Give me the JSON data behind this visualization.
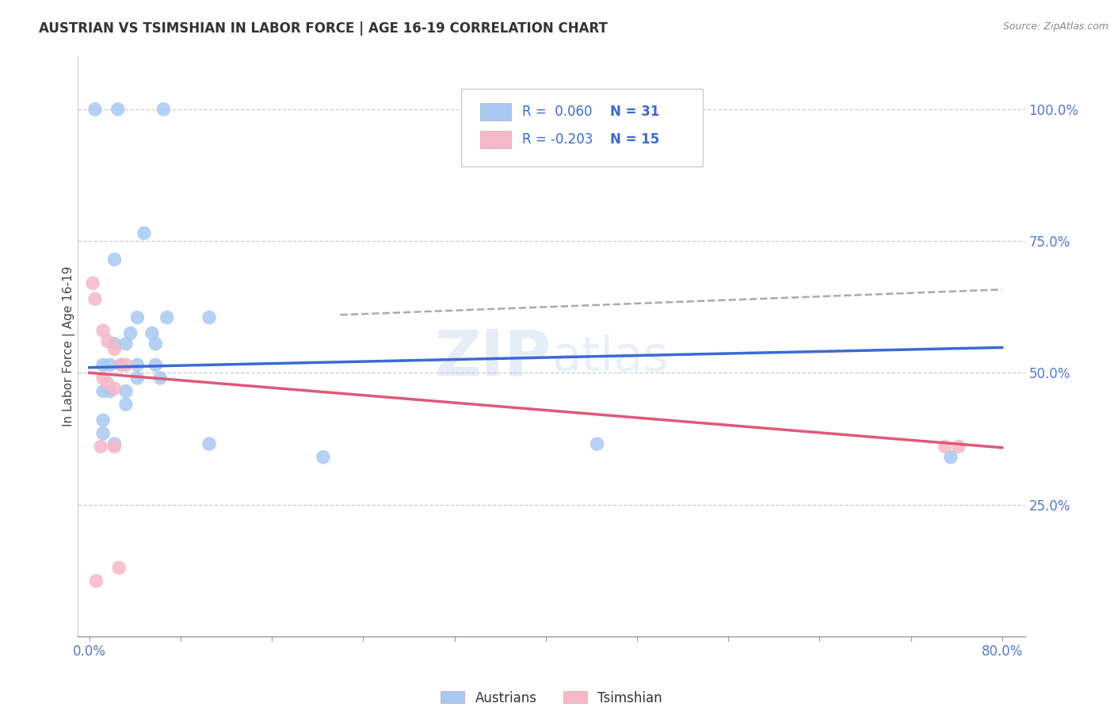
{
  "title": "AUSTRIAN VS TSIMSHIAN IN LABOR FORCE | AGE 16-19 CORRELATION CHART",
  "source": "Source: ZipAtlas.com",
  "ylabel": "In Labor Force | Age 16-19",
  "y_tick_labels": [
    "100.0%",
    "75.0%",
    "50.0%",
    "25.0%"
  ],
  "y_tick_values": [
    1.0,
    0.75,
    0.5,
    0.25
  ],
  "watermark": "ZIPatlas",
  "legend_blue_label": "Austrians",
  "legend_pink_label": "Tsimshian",
  "blue_color": "#a8c8f0",
  "pink_color": "#f5b8c8",
  "blue_line_color": "#3a6ad4",
  "pink_line_color": "#e05878",
  "dashed_line_color": "#aaaaaa",
  "blue_scatter": [
    [
      0.005,
      1.0
    ],
    [
      0.025,
      1.0
    ],
    [
      0.065,
      1.0
    ],
    [
      0.022,
      0.715
    ],
    [
      0.048,
      0.765
    ],
    [
      0.042,
      0.605
    ],
    [
      0.068,
      0.605
    ],
    [
      0.105,
      0.605
    ],
    [
      0.036,
      0.575
    ],
    [
      0.055,
      0.575
    ],
    [
      0.022,
      0.555
    ],
    [
      0.032,
      0.555
    ],
    [
      0.058,
      0.555
    ],
    [
      0.012,
      0.515
    ],
    [
      0.018,
      0.515
    ],
    [
      0.028,
      0.515
    ],
    [
      0.042,
      0.515
    ],
    [
      0.058,
      0.515
    ],
    [
      0.042,
      0.49
    ],
    [
      0.012,
      0.465
    ],
    [
      0.018,
      0.465
    ],
    [
      0.032,
      0.465
    ],
    [
      0.032,
      0.44
    ],
    [
      0.012,
      0.41
    ],
    [
      0.012,
      0.385
    ],
    [
      0.022,
      0.365
    ],
    [
      0.105,
      0.365
    ],
    [
      0.062,
      0.49
    ],
    [
      0.445,
      0.365
    ],
    [
      0.205,
      0.34
    ],
    [
      0.755,
      0.34
    ]
  ],
  "pink_scatter": [
    [
      0.003,
      0.67
    ],
    [
      0.005,
      0.64
    ],
    [
      0.012,
      0.58
    ],
    [
      0.016,
      0.56
    ],
    [
      0.022,
      0.545
    ],
    [
      0.028,
      0.515
    ],
    [
      0.032,
      0.515
    ],
    [
      0.012,
      0.49
    ],
    [
      0.016,
      0.48
    ],
    [
      0.022,
      0.47
    ],
    [
      0.01,
      0.36
    ],
    [
      0.022,
      0.36
    ],
    [
      0.75,
      0.36
    ],
    [
      0.762,
      0.36
    ],
    [
      0.006,
      0.105
    ],
    [
      0.026,
      0.13
    ]
  ],
  "blue_line_x": [
    0.0,
    0.8
  ],
  "blue_line_y": [
    0.51,
    0.548
  ],
  "pink_line_x": [
    0.0,
    0.8
  ],
  "pink_line_y": [
    0.5,
    0.358
  ],
  "dashed_line_x": [
    0.22,
    0.8
  ],
  "dashed_line_y": [
    0.61,
    0.658
  ],
  "xlim": [
    -0.01,
    0.82
  ],
  "ylim": [
    0.0,
    1.1
  ],
  "x_axis_min_label": "0.0%",
  "x_axis_max_label": "80.0%",
  "background_color": "#ffffff",
  "grid_color": "#cccccc"
}
